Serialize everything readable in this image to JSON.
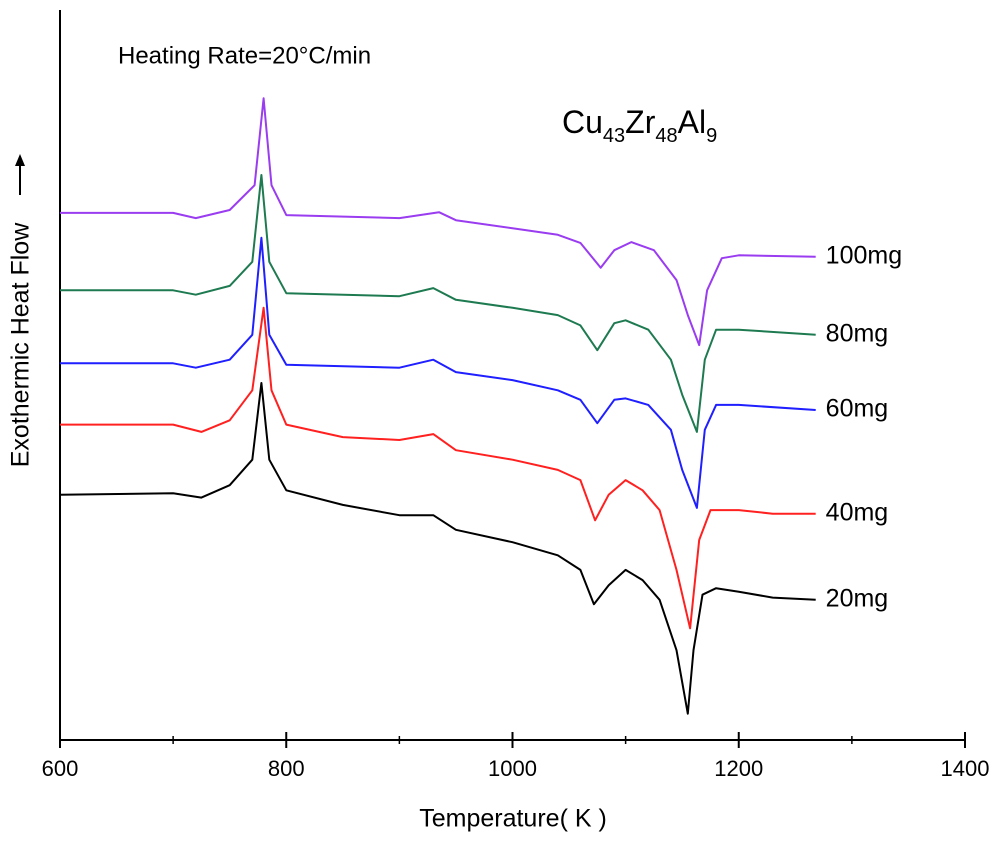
{
  "chart_data": {
    "type": "line",
    "title": "Heating Rate=20°C/min",
    "formula": [
      "Cu",
      "43",
      "Zr",
      "48",
      "Al",
      "9"
    ],
    "x_label": "Temperature( K )",
    "y_label": "Exothermic Heat Flow",
    "xlim": [
      600,
      1400
    ],
    "xticks": [
      600,
      800,
      1000,
      1200,
      1400
    ],
    "xminor_ticks": [
      700,
      900,
      1100,
      1300
    ],
    "ylim": [
      0,
      100
    ],
    "series": [
      {
        "name": "20mg",
        "color": "#000000",
        "x": [
          600,
          700,
          725,
          750,
          770,
          778,
          785,
          800,
          850,
          900,
          930,
          950,
          1000,
          1040,
          1060,
          1072,
          1085,
          1100,
          1115,
          1130,
          1145,
          1155,
          1160,
          1168,
          1180,
          1200,
          1230,
          1268
        ],
        "values": [
          33.6,
          33.8,
          33.2,
          34.9,
          38.4,
          48.9,
          38.4,
          34.2,
          32.2,
          30.8,
          30.8,
          28.8,
          27.1,
          25.3,
          23.3,
          18.6,
          21.2,
          23.3,
          21.9,
          19.2,
          12.3,
          3.6,
          12.3,
          19.9,
          20.8,
          20.3,
          19.5,
          19.2
        ]
      },
      {
        "name": "40mg",
        "color": "#ff2020",
        "x": [
          600,
          700,
          725,
          750,
          770,
          780,
          787,
          800,
          850,
          900,
          930,
          950,
          1000,
          1040,
          1060,
          1073,
          1085,
          1100,
          1115,
          1130,
          1145,
          1157,
          1165,
          1175,
          1200,
          1230,
          1268
        ],
        "values": [
          43.2,
          43.2,
          42.2,
          43.8,
          47.9,
          59.2,
          47.9,
          43.2,
          41.5,
          41.1,
          41.9,
          39.7,
          38.4,
          37.0,
          35.6,
          30.1,
          33.6,
          35.6,
          34.2,
          31.5,
          23.3,
          15.3,
          27.4,
          31.5,
          31.5,
          31.0,
          31.0
        ]
      },
      {
        "name": "60mg",
        "color": "#1f1fff",
        "x": [
          600,
          700,
          720,
          750,
          770,
          778,
          785,
          800,
          900,
          930,
          950,
          1000,
          1040,
          1060,
          1075,
          1090,
          1100,
          1120,
          1140,
          1150,
          1163,
          1170,
          1180,
          1200,
          1268
        ],
        "values": [
          51.6,
          51.6,
          51.0,
          52.1,
          55.5,
          68.8,
          55.5,
          51.4,
          51.0,
          52.1,
          50.4,
          49.3,
          47.9,
          46.6,
          43.4,
          46.6,
          46.8,
          45.9,
          42.5,
          37.0,
          31.8,
          42.5,
          45.9,
          45.9,
          45.2
        ]
      },
      {
        "name": "80mg",
        "color": "#1e7a50",
        "x": [
          600,
          700,
          720,
          750,
          770,
          778,
          785,
          800,
          900,
          930,
          950,
          1000,
          1040,
          1060,
          1075,
          1090,
          1100,
          1120,
          1140,
          1150,
          1163,
          1170,
          1180,
          1200,
          1268
        ],
        "values": [
          61.6,
          61.6,
          61.0,
          62.2,
          65.5,
          77.4,
          65.5,
          61.2,
          60.8,
          61.9,
          60.3,
          59.2,
          58.2,
          56.8,
          53.4,
          57.1,
          57.5,
          56.2,
          52.1,
          47.3,
          42.2,
          52.1,
          56.2,
          56.2,
          55.5
        ]
      },
      {
        "name": "100mg",
        "color": "#9a3cf0",
        "x": [
          600,
          700,
          720,
          750,
          772,
          780,
          787,
          800,
          900,
          935,
          950,
          1000,
          1040,
          1060,
          1078,
          1090,
          1105,
          1125,
          1145,
          1155,
          1165,
          1172,
          1185,
          1200,
          1268
        ],
        "values": [
          72.2,
          72.2,
          71.5,
          72.6,
          76.0,
          87.9,
          76.0,
          71.9,
          71.5,
          72.3,
          71.2,
          70.1,
          69.2,
          68.1,
          64.7,
          67.1,
          68.2,
          67.1,
          63.0,
          58.2,
          54.1,
          61.6,
          66.0,
          66.4,
          66.2
        ]
      }
    ]
  }
}
